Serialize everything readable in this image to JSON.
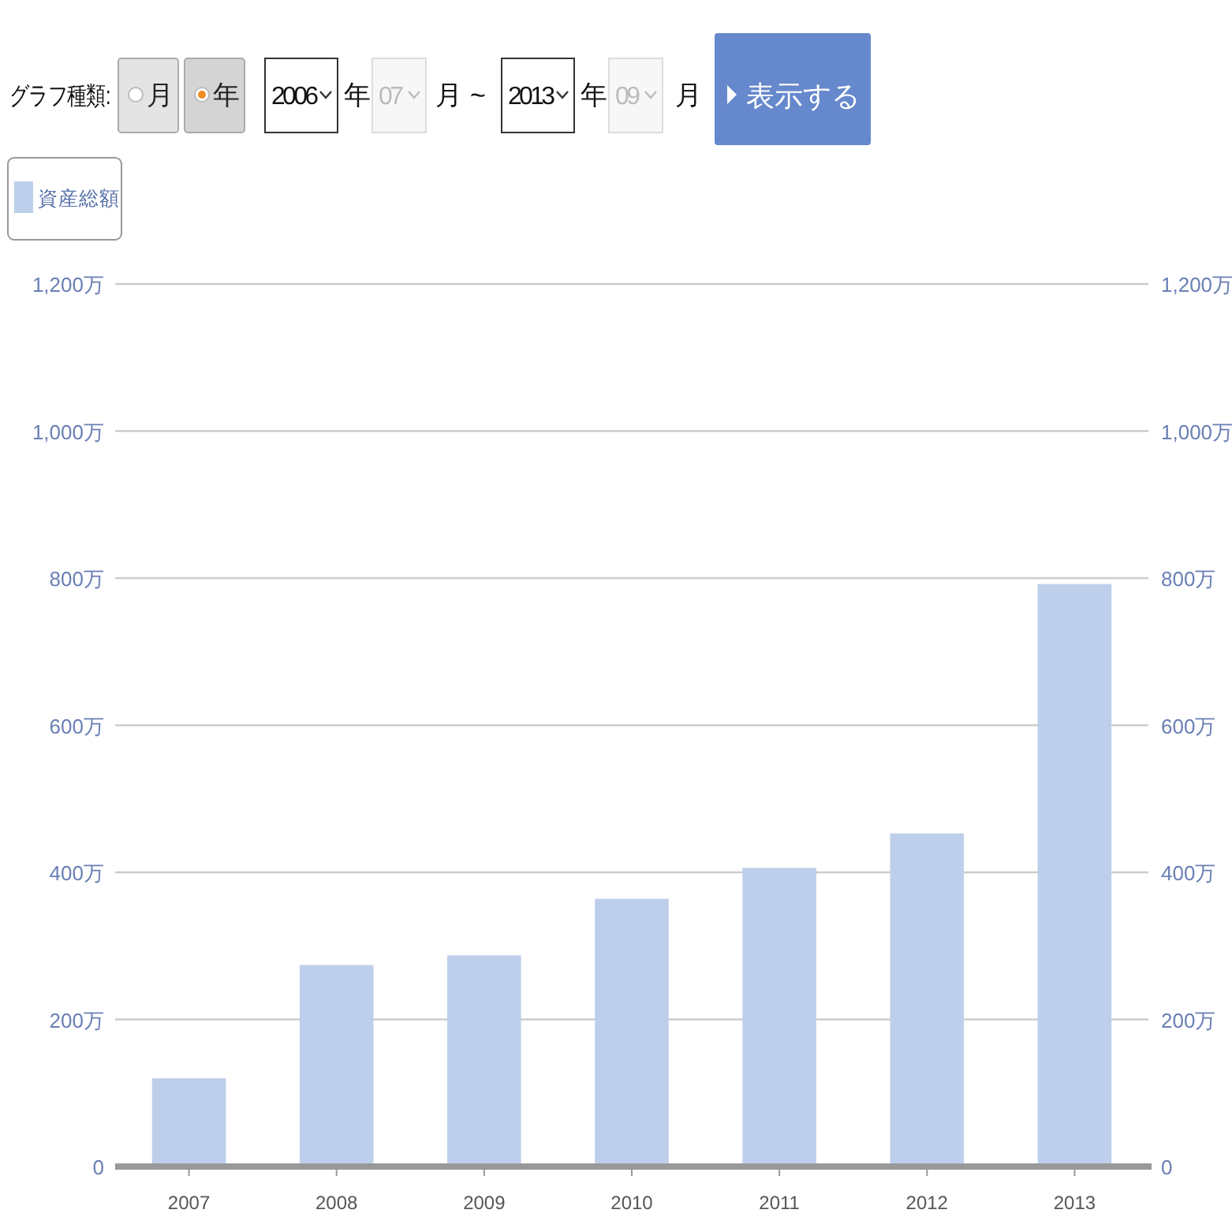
{
  "chart_data": {
    "type": "bar",
    "categories": [
      "2007",
      "2008",
      "2009",
      "2010",
      "2011",
      "2012",
      "2013"
    ],
    "series": [
      {
        "name": "資産総額",
        "color": "#bdcfeb",
        "values": [
          120,
          274,
          287,
          364,
          406,
          453,
          792
        ]
      }
    ],
    "ylim": [
      0,
      1200
    ],
    "yticks": [
      {
        "value": 0,
        "label": "0"
      },
      {
        "value": 200,
        "label": "200万"
      },
      {
        "value": 400,
        "label": "400万"
      },
      {
        "value": 600,
        "label": "600万"
      },
      {
        "value": 800,
        "label": "800万"
      },
      {
        "value": 1000,
        "label": "1,000万"
      },
      {
        "value": 1200,
        "label": "1,200万"
      }
    ],
    "y2lim": [
      0,
      1200
    ],
    "y2ticks": [
      {
        "value": 0,
        "label": "0"
      },
      {
        "value": 200,
        "label": "200万"
      },
      {
        "value": 400,
        "label": "400万"
      },
      {
        "value": 600,
        "label": "600万"
      },
      {
        "value": 800,
        "label": "800万"
      },
      {
        "value": 1000,
        "label": "1,000万"
      },
      {
        "value": 1200,
        "label": "1,200万"
      }
    ],
    "grid": "y",
    "legend": "top left",
    "annotations": [
      "グラフ種類:",
      "月",
      "年",
      "2006",
      "年",
      "07",
      "月",
      "~",
      "2013",
      "年",
      "09",
      "月",
      "表示する"
    ]
  }
}
